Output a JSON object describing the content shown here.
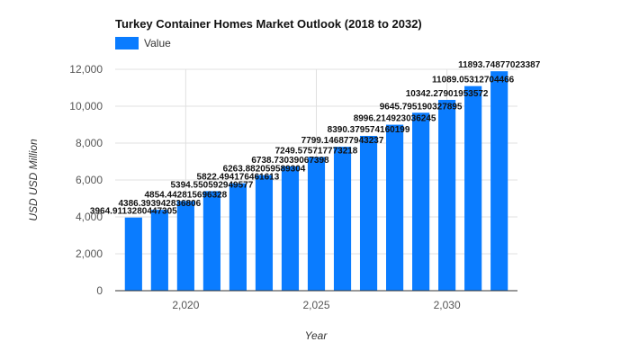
{
  "chart_data": {
    "type": "bar",
    "title": "Turkey Container Homes Market Outlook (2018 to 2032)",
    "xlabel": "Year",
    "ylabel": "USD USD Million",
    "legend": {
      "position": "top-left",
      "entries": [
        "Value"
      ]
    },
    "grid": true,
    "ylim": [
      0,
      12000
    ],
    "xlim": [
      2017.3,
      2032.7
    ],
    "y_ticks": [
      0,
      2000,
      4000,
      6000,
      8000,
      10000,
      12000
    ],
    "y_tick_labels": [
      "0",
      "2,000",
      "4,000",
      "6,000",
      "8,000",
      "10,000",
      "12,000"
    ],
    "x_ticks": [
      2020,
      2025,
      2030
    ],
    "x_tick_labels": [
      "2,020",
      "2,025",
      "2,030"
    ],
    "color": "#0a7cff",
    "series": [
      {
        "name": "Value",
        "x": [
          2018,
          2019,
          2020,
          2021,
          2022,
          2023,
          2024,
          2025,
          2026,
          2027,
          2028,
          2029,
          2030,
          2031,
          2032
        ],
        "values": [
          3964.9113280447305,
          4386.393942836806,
          4854.442815696328,
          5394.550592949577,
          5822.494176461613,
          6263.882059589304,
          6738.73039067398,
          7249.575717773218,
          7799.146877943237,
          8390.379574160199,
          8996.214923036245,
          9645.795190327895,
          10342.27901953572,
          11089.05312704466,
          11893.74877023387
        ],
        "labels": [
          "3964.9113280447305",
          "4386.393942836806",
          "4854.442815696328",
          "5394.550592949577",
          "5822.494176461613",
          "6263.882059589304",
          "6738.73039067398",
          "7249.575717773218",
          "7799.146877943237",
          "8390.379574160199",
          "8996.214923036245",
          "9645.795190327895",
          "10342.27901953572",
          "11089.05312704466",
          "11893.74877023387"
        ]
      }
    ]
  }
}
